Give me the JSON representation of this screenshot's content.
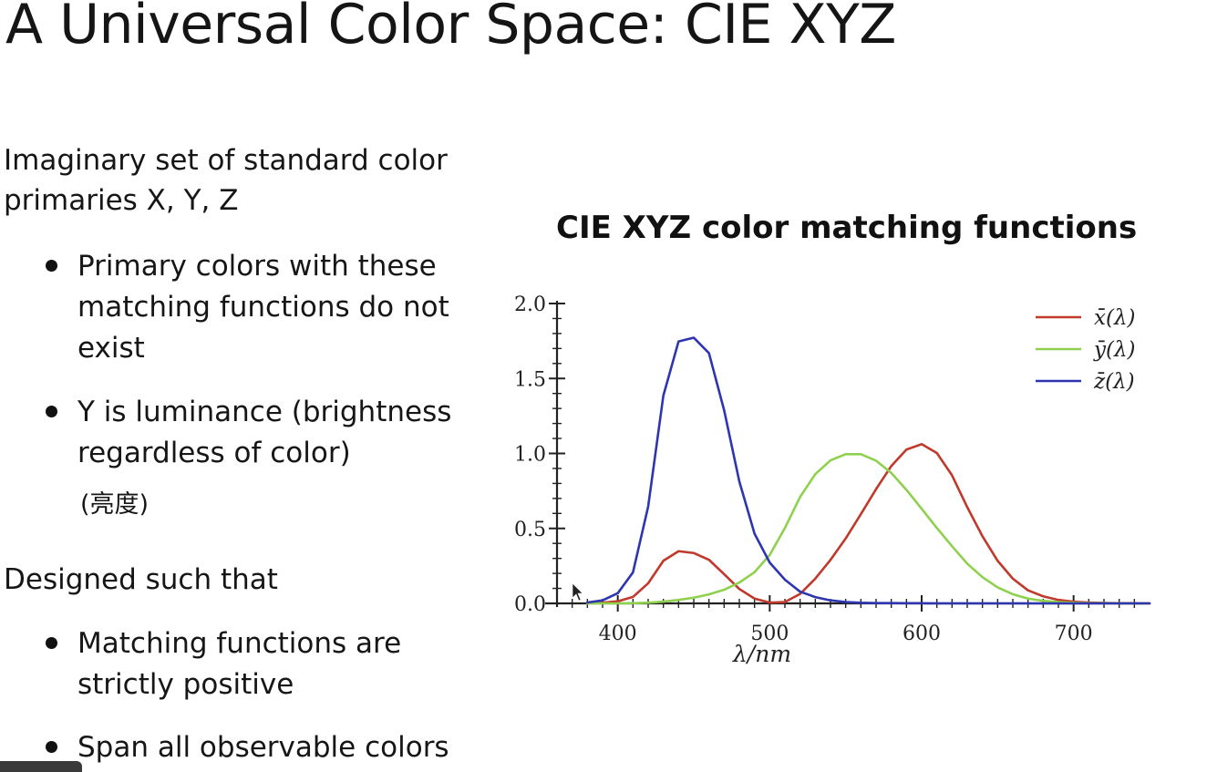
{
  "slide": {
    "title": "A Universal Color Space: CIE XYZ",
    "intro": "Imaginary set of standard color primaries X, Y, Z",
    "bullets_1": [
      "Primary colors with these matching functions do not exist",
      "Y is luminance (brightness regardless of color)"
    ],
    "cn_note": "(亮度)",
    "designed": "Designed such that",
    "bullets_2": [
      "Matching functions are strictly positive",
      "Span all observable colors"
    ]
  },
  "chart_data": {
    "type": "line",
    "title": "CIE XYZ color matching functions",
    "xlabel": "λ/nm",
    "ylabel": "",
    "xlim": [
      360,
      750
    ],
    "ylim": [
      0,
      2.0
    ],
    "x_ticks": [
      400,
      500,
      600,
      700
    ],
    "y_ticks": [
      "0.0",
      "0.5",
      "1.0",
      "1.5",
      "2.0"
    ],
    "legend_position": "top-right",
    "grid": false,
    "colors": {
      "x_bar": "#c0392b",
      "y_bar": "#8fd14f",
      "z_bar": "#2e35b0"
    },
    "x": [
      380,
      390,
      400,
      410,
      420,
      430,
      440,
      450,
      460,
      470,
      480,
      490,
      500,
      510,
      520,
      530,
      540,
      550,
      560,
      570,
      580,
      590,
      600,
      610,
      620,
      630,
      640,
      650,
      660,
      670,
      680,
      690,
      700,
      710,
      720,
      730,
      740,
      750
    ],
    "series": [
      {
        "name": "x̄(λ)",
        "color_key": "x_bar",
        "values": [
          0.001,
          0.004,
          0.014,
          0.043,
          0.134,
          0.284,
          0.348,
          0.336,
          0.291,
          0.195,
          0.096,
          0.032,
          0.005,
          0.009,
          0.063,
          0.165,
          0.29,
          0.433,
          0.595,
          0.762,
          0.916,
          1.026,
          1.062,
          1.003,
          0.854,
          0.642,
          0.448,
          0.284,
          0.165,
          0.087,
          0.047,
          0.023,
          0.011,
          0.006,
          0.003,
          0.001,
          0.001,
          0.0
        ]
      },
      {
        "name": "ȳ(λ)",
        "color_key": "y_bar",
        "values": [
          0.0,
          0.0,
          0.0,
          0.001,
          0.004,
          0.012,
          0.023,
          0.038,
          0.06,
          0.091,
          0.139,
          0.208,
          0.323,
          0.503,
          0.71,
          0.862,
          0.954,
          0.995,
          0.995,
          0.952,
          0.87,
          0.757,
          0.631,
          0.503,
          0.381,
          0.265,
          0.175,
          0.107,
          0.061,
          0.032,
          0.017,
          0.008,
          0.004,
          0.002,
          0.001,
          0.0,
          0.0,
          0.0
        ]
      },
      {
        "name": "z̄(λ)",
        "color_key": "z_bar",
        "values": [
          0.006,
          0.02,
          0.068,
          0.207,
          0.646,
          1.386,
          1.747,
          1.772,
          1.669,
          1.288,
          0.813,
          0.465,
          0.272,
          0.158,
          0.078,
          0.042,
          0.02,
          0.009,
          0.004,
          0.002,
          0.002,
          0.001,
          0.001,
          0.0,
          0.0,
          0.0,
          0.0,
          0.0,
          0.0,
          0.0,
          0.0,
          0.0,
          0.0,
          0.0,
          0.0,
          0.0,
          0.0,
          0.0
        ]
      }
    ]
  }
}
